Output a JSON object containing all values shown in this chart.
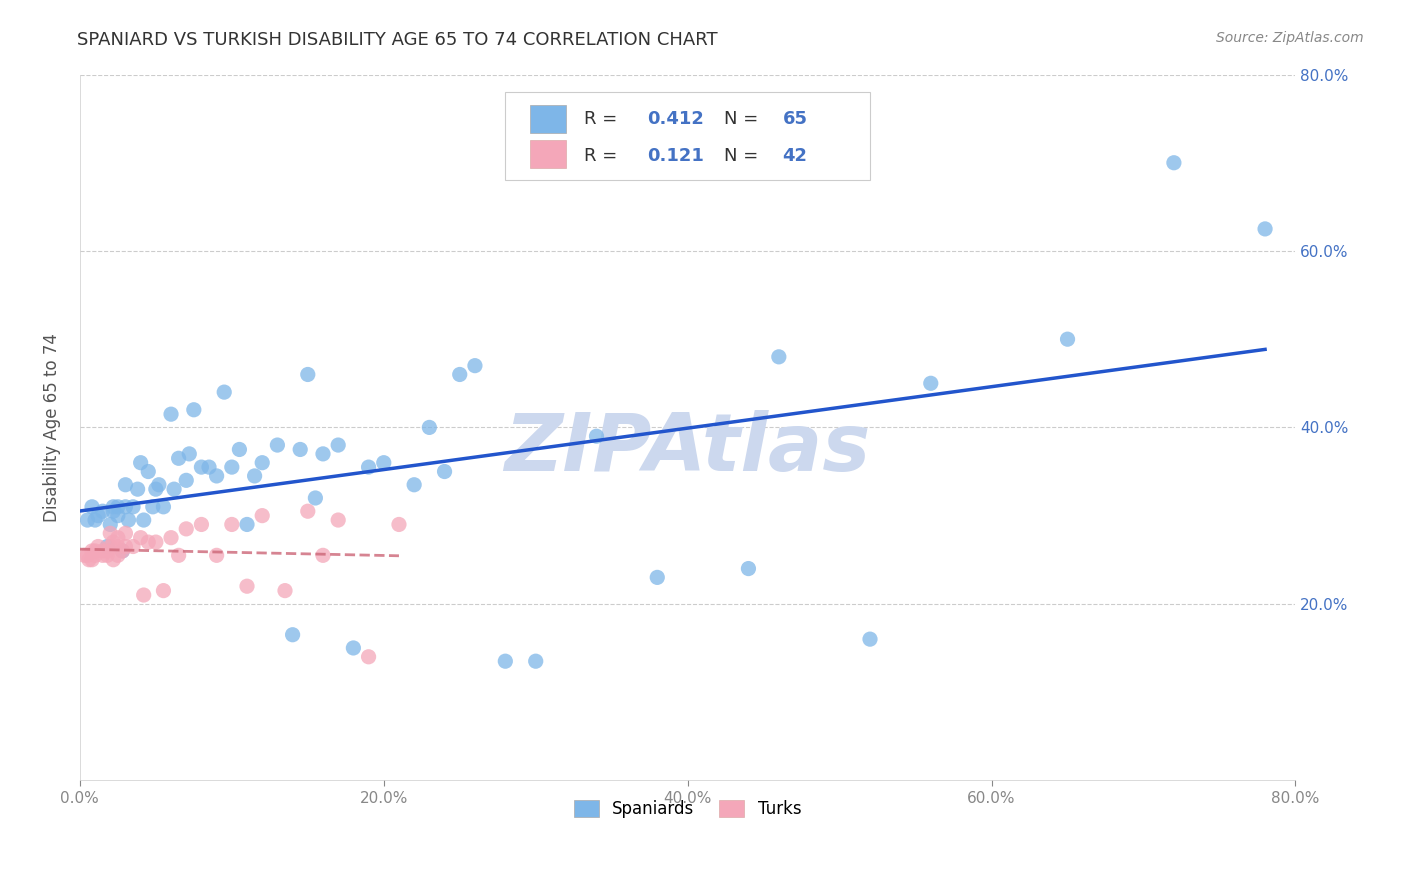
{
  "title": "SPANIARD VS TURKISH DISABILITY AGE 65 TO 74 CORRELATION CHART",
  "source": "Source: ZipAtlas.com",
  "ylabel": "Disability Age 65 to 74",
  "xlim": [
    0.0,
    0.8
  ],
  "ylim": [
    0.0,
    0.8
  ],
  "xticks": [
    0.0,
    0.2,
    0.4,
    0.6,
    0.8
  ],
  "yticks": [
    0.2,
    0.4,
    0.6,
    0.8
  ],
  "xticklabels": [
    "0.0%",
    "20.0%",
    "40.0%",
    "60.0%",
    "80.0%"
  ],
  "yticklabels": [
    "20.0%",
    "40.0%",
    "60.0%",
    "80.0%"
  ],
  "spaniard_color": "#7EB6E8",
  "turk_color": "#F4A7B9",
  "spaniard_line_color": "#2255CC",
  "turk_line_color": "#CC6677",
  "spaniard_R": 0.412,
  "spaniard_N": 65,
  "turk_R": 0.121,
  "turk_N": 42,
  "background_color": "#ffffff",
  "grid_color": "#cccccc",
  "watermark_color": "#ccd8ee",
  "legend_label_spaniards": "Spaniards",
  "legend_label_turks": "Turks",
  "tick_color_y": "#4472C4",
  "tick_color_x": "#888888",
  "spaniard_x": [
    0.005,
    0.008,
    0.01,
    0.012,
    0.015,
    0.018,
    0.02,
    0.022,
    0.022,
    0.025,
    0.025,
    0.028,
    0.03,
    0.03,
    0.032,
    0.035,
    0.038,
    0.04,
    0.042,
    0.045,
    0.048,
    0.05,
    0.052,
    0.055,
    0.06,
    0.062,
    0.065,
    0.07,
    0.072,
    0.075,
    0.08,
    0.085,
    0.09,
    0.095,
    0.1,
    0.105,
    0.11,
    0.115,
    0.12,
    0.13,
    0.14,
    0.145,
    0.15,
    0.155,
    0.16,
    0.17,
    0.18,
    0.19,
    0.2,
    0.22,
    0.23,
    0.24,
    0.25,
    0.26,
    0.28,
    0.3,
    0.34,
    0.38,
    0.44,
    0.46,
    0.52,
    0.56,
    0.65,
    0.72,
    0.78
  ],
  "spaniard_y": [
    0.295,
    0.31,
    0.295,
    0.3,
    0.305,
    0.265,
    0.29,
    0.31,
    0.305,
    0.3,
    0.31,
    0.26,
    0.31,
    0.335,
    0.295,
    0.31,
    0.33,
    0.36,
    0.295,
    0.35,
    0.31,
    0.33,
    0.335,
    0.31,
    0.415,
    0.33,
    0.365,
    0.34,
    0.37,
    0.42,
    0.355,
    0.355,
    0.345,
    0.44,
    0.355,
    0.375,
    0.29,
    0.345,
    0.36,
    0.38,
    0.165,
    0.375,
    0.46,
    0.32,
    0.37,
    0.38,
    0.15,
    0.355,
    0.36,
    0.335,
    0.4,
    0.35,
    0.46,
    0.47,
    0.135,
    0.135,
    0.39,
    0.23,
    0.24,
    0.48,
    0.16,
    0.45,
    0.5,
    0.7,
    0.625
  ],
  "turk_x": [
    0.003,
    0.005,
    0.006,
    0.008,
    0.008,
    0.01,
    0.01,
    0.012,
    0.015,
    0.015,
    0.018,
    0.018,
    0.02,
    0.02,
    0.022,
    0.022,
    0.025,
    0.025,
    0.025,
    0.028,
    0.03,
    0.03,
    0.035,
    0.04,
    0.042,
    0.045,
    0.05,
    0.055,
    0.06,
    0.065,
    0.07,
    0.08,
    0.09,
    0.1,
    0.11,
    0.12,
    0.135,
    0.15,
    0.16,
    0.17,
    0.19,
    0.21
  ],
  "turk_y": [
    0.255,
    0.255,
    0.25,
    0.26,
    0.25,
    0.255,
    0.26,
    0.265,
    0.26,
    0.255,
    0.255,
    0.26,
    0.265,
    0.28,
    0.27,
    0.25,
    0.265,
    0.275,
    0.255,
    0.26,
    0.265,
    0.28,
    0.265,
    0.275,
    0.21,
    0.27,
    0.27,
    0.215,
    0.275,
    0.255,
    0.285,
    0.29,
    0.255,
    0.29,
    0.22,
    0.3,
    0.215,
    0.305,
    0.255,
    0.295,
    0.14,
    0.29
  ]
}
